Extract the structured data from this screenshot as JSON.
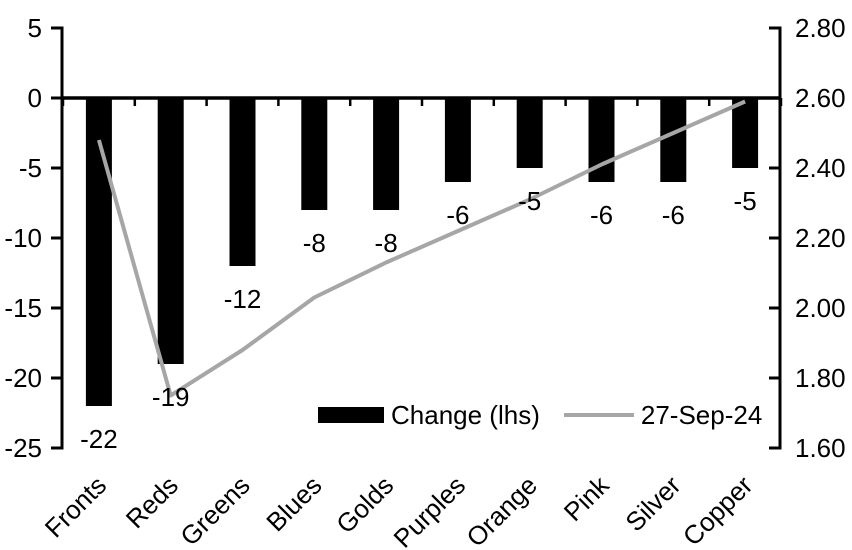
{
  "chart_data": {
    "type": "bar",
    "subtype": "bar-line-combo",
    "title": "",
    "xlabel": "",
    "ylabel_left": "",
    "ylabel_right": "",
    "grid": false,
    "background": "#ffffff",
    "axis_color": "#000000",
    "categories": [
      "Fronts",
      "Reds",
      "Greens",
      "Blues",
      "Golds",
      "Purples",
      "Orange",
      "Pink",
      "Silver",
      "Copper"
    ],
    "series": [
      {
        "name": "Change (lhs)",
        "type": "bar",
        "axis": "left",
        "color": "#000000",
        "values": [
          -22,
          -19,
          -12,
          -8,
          -8,
          -6,
          -5,
          -6,
          -6,
          -5
        ],
        "data_labels": [
          "-22",
          "-19",
          "-12",
          "-8",
          "-8",
          "-6",
          "-5",
          "-6",
          "-6",
          "-5"
        ]
      },
      {
        "name": "27-Sep-24",
        "type": "line",
        "axis": "right",
        "color": "#a6a6a6",
        "values": [
          2.48,
          1.75,
          1.88,
          2.03,
          2.13,
          2.22,
          2.31,
          2.41,
          2.5,
          2.59
        ]
      }
    ],
    "left_axis": {
      "min": -25,
      "max": 5,
      "tick_labels": [
        "5",
        "0",
        "-5",
        "-10",
        "-15",
        "-20",
        "-25"
      ]
    },
    "right_axis": {
      "min": 1.6,
      "max": 2.8,
      "tick_labels": [
        "2.80",
        "2.60",
        "2.40",
        "2.20",
        "2.00",
        "1.80",
        "1.60"
      ]
    },
    "legend": {
      "position": "bottom-inside",
      "entries": [
        "Change (lhs)",
        "27-Sep-24"
      ]
    }
  }
}
